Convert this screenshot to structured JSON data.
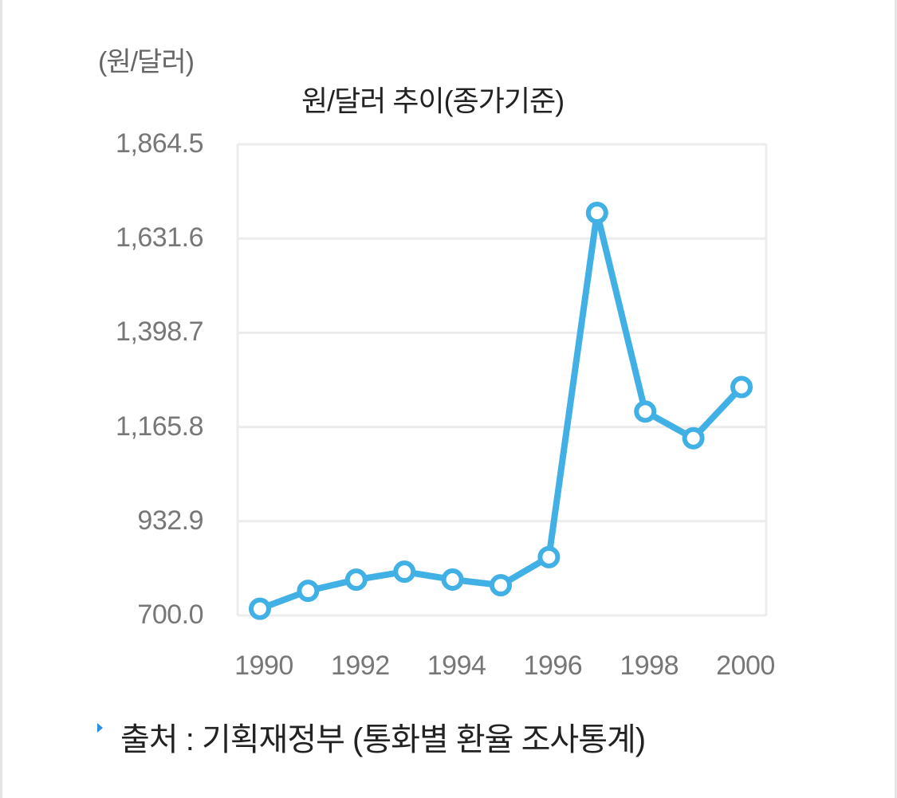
{
  "chart_data": {
    "type": "line",
    "title": "원/달러 추이(종가기준)",
    "unit_label": "(원/달러)",
    "xlabel": "",
    "ylabel": "원/달러",
    "x": [
      1990,
      1991,
      1992,
      1993,
      1994,
      1995,
      1996,
      1997,
      1998,
      1999,
      2000
    ],
    "series": [
      {
        "name": "원/달러 종가",
        "color": "#41b0e4",
        "values": [
          716.4,
          760.8,
          788.4,
          808.1,
          788.7,
          774.7,
          844.2,
          1695.0,
          1204.0,
          1138.0,
          1264.5
        ]
      }
    ],
    "yticks": [
      "1,864.5",
      "1,631.6",
      "1,398.7",
      "1,165.8",
      "932.9",
      "700.0"
    ],
    "ytick_values": [
      1864.5,
      1631.6,
      1398.7,
      1165.8,
      932.9,
      700.0
    ],
    "xticks": [
      "1990",
      "1992",
      "1994",
      "1996",
      "1998",
      "2000"
    ],
    "ylim": [
      700.0,
      1864.5
    ],
    "grid": true,
    "legend": "none"
  },
  "source": {
    "text": "출처 : 기획재정부 (통화별 환율 조사통계)"
  },
  "colors": {
    "line": "#41b0e4",
    "grid": "#ececec",
    "tick_text": "#777777",
    "bullet": "#2a8fe0"
  }
}
